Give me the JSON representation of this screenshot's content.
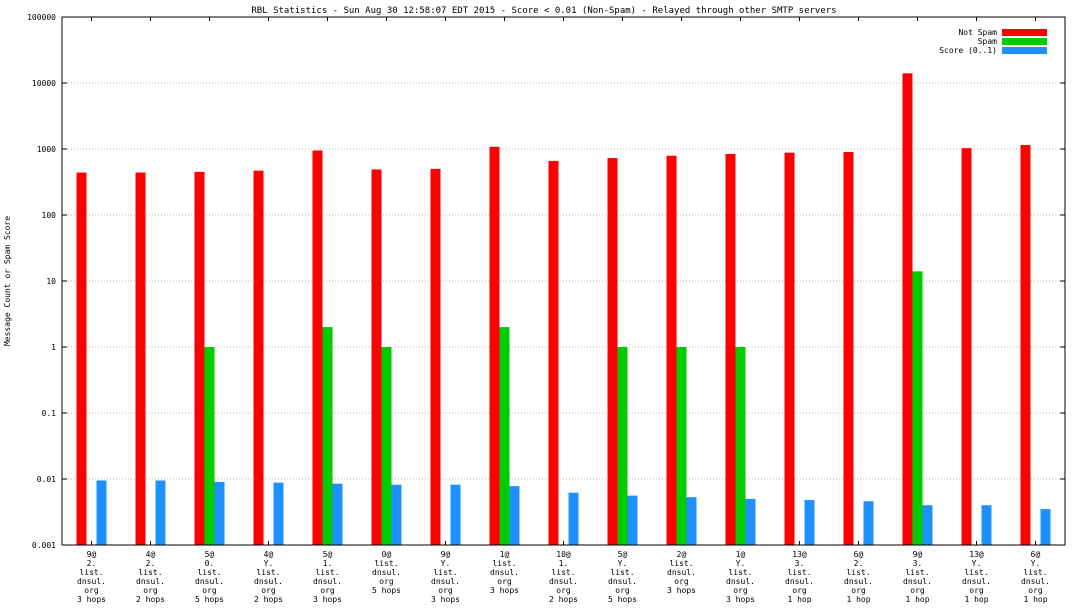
{
  "chart_data": {
    "type": "bar",
    "title": "RBL Statistics - Sun Aug 30 12:58:07 EDT 2015 - Score < 0.01 (Non-Spam) - Relayed through other SMTP servers",
    "ylabel": "Message Count or Spam Score",
    "xlabel": "",
    "y_scale": "log",
    "ylim": [
      0.001,
      100000
    ],
    "y_ticks": [
      "100000",
      "10000",
      "1000",
      "100",
      "10",
      "1",
      "0.1",
      "0.01",
      "0.001"
    ],
    "grid": true,
    "legend_position": "top-right",
    "categories": [
      [
        "9@",
        "2.",
        "list.",
        "dnsul.",
        "org",
        "3 hops"
      ],
      [
        "4@",
        "2.",
        "list.",
        "dnsul.",
        "org",
        "2 hops"
      ],
      [
        "5@",
        "0.",
        "list.",
        "dnsul.",
        "org",
        "5 hops"
      ],
      [
        "4@",
        "Y.",
        "list.",
        "dnsul.",
        "org",
        "2 hops"
      ],
      [
        "5@",
        "1.",
        "list.",
        "dnsul.",
        "org",
        "3 hops"
      ],
      [
        "0@",
        "list.",
        "dnsul.",
        "org",
        "5 hops"
      ],
      [
        "9@",
        "Y.",
        "list.",
        "dnsul.",
        "org",
        "3 hops"
      ],
      [
        "1@",
        "list.",
        "dnsul.",
        "org",
        "3 hops"
      ],
      [
        "10@",
        "1.",
        "list.",
        "dnsul.",
        "org",
        "2 hops"
      ],
      [
        "5@",
        "Y.",
        "list.",
        "dnsul.",
        "org",
        "5 hops"
      ],
      [
        "2@",
        "list.",
        "dnsul.",
        "org",
        "3 hops"
      ],
      [
        "1@",
        "Y.",
        "list.",
        "dnsul.",
        "org",
        "3 hops"
      ],
      [
        "13@",
        "3.",
        "list.",
        "dnsul.",
        "org",
        "1 hop"
      ],
      [
        "6@",
        "2.",
        "list.",
        "dnsul.",
        "org",
        "1 hop"
      ],
      [
        "9@",
        "3.",
        "list.",
        "dnsul.",
        "org",
        "1 hop"
      ],
      [
        "13@",
        "Y.",
        "list.",
        "dnsul.",
        "org",
        "1 hop"
      ],
      [
        "6@",
        "Y.",
        "list.",
        "dnsul.",
        "org",
        "1 hop"
      ]
    ],
    "series": [
      {
        "name": "Not Spam",
        "color": "#ff0000",
        "values": [
          440,
          440,
          450,
          470,
          950,
          490,
          500,
          1080,
          660,
          730,
          790,
          840,
          880,
          900,
          14000,
          1030,
          1150
        ]
      },
      {
        "name": "Spam",
        "color": "#00cc00",
        "values": [
          null,
          null,
          1,
          null,
          2,
          1,
          null,
          2,
          null,
          1,
          1,
          1,
          null,
          null,
          14,
          null,
          null
        ]
      },
      {
        "name": "Score (0..1)",
        "color": "#1e90ff",
        "values": [
          0.0095,
          0.0095,
          0.009,
          0.0088,
          0.0085,
          0.0082,
          0.0082,
          0.0078,
          0.0062,
          0.0056,
          0.0053,
          0.005,
          0.0048,
          0.0046,
          0.004,
          0.004,
          0.0035
        ]
      }
    ]
  }
}
